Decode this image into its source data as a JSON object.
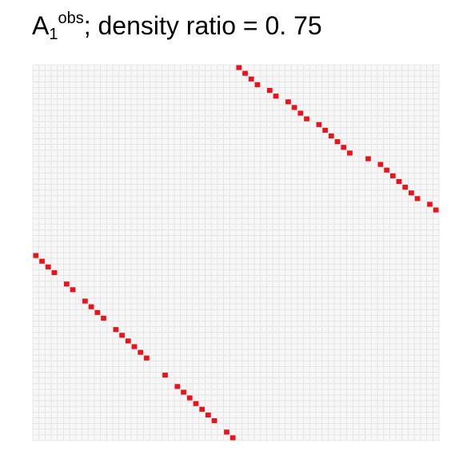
{
  "title": {
    "base": "A",
    "subscript": "1",
    "superscript": "obs",
    "rest": "; density ratio = 0. 75"
  },
  "colors": {
    "background": "#ffffff",
    "grid": "#e3e3e3",
    "cell_fill": "#f7f7f7",
    "mark": "#e8141b"
  },
  "chart_data": {
    "type": "heatmap",
    "rows": 66,
    "cols": 66,
    "grid": true,
    "points": [
      [
        0,
        33
      ],
      [
        1,
        34
      ],
      [
        2,
        35
      ],
      [
        3,
        36
      ],
      [
        4,
        38
      ],
      [
        5,
        39
      ],
      [
        6,
        41
      ],
      [
        7,
        42
      ],
      [
        8,
        43
      ],
      [
        9,
        44
      ],
      [
        10,
        46
      ],
      [
        11,
        47
      ],
      [
        12,
        48
      ],
      [
        13,
        49
      ],
      [
        14,
        50
      ],
      [
        15,
        51
      ],
      [
        16,
        54
      ],
      [
        17,
        56
      ],
      [
        18,
        57
      ],
      [
        19,
        58
      ],
      [
        20,
        59
      ],
      [
        21,
        60
      ],
      [
        22,
        61
      ],
      [
        23,
        62
      ],
      [
        24,
        64
      ],
      [
        25,
        65
      ],
      [
        33,
        0
      ],
      [
        34,
        1
      ],
      [
        35,
        2
      ],
      [
        36,
        3
      ],
      [
        38,
        5
      ],
      [
        39,
        6
      ],
      [
        41,
        8
      ],
      [
        42,
        9
      ],
      [
        43,
        10
      ],
      [
        44,
        11
      ],
      [
        46,
        13
      ],
      [
        47,
        14
      ],
      [
        48,
        15
      ],
      [
        49,
        16
      ],
      [
        50,
        17
      ],
      [
        51,
        18
      ],
      [
        54,
        21
      ],
      [
        56,
        23
      ],
      [
        57,
        24
      ],
      [
        58,
        25
      ],
      [
        59,
        26
      ],
      [
        60,
        27
      ],
      [
        61,
        28
      ],
      [
        62,
        29
      ],
      [
        64,
        31
      ],
      [
        65,
        32
      ]
    ]
  }
}
